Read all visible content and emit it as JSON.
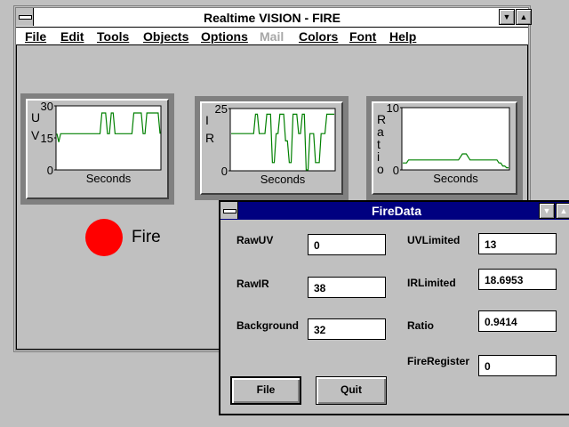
{
  "window": {
    "title": "Realtime VISION - FIRE"
  },
  "menu": [
    "File",
    "Edit",
    "Tools",
    "Objects",
    "Options",
    "Mail",
    "Colors",
    "Font",
    "Help"
  ],
  "menu_disabled": [
    "Mail"
  ],
  "charts": [
    {
      "ylabel": "UV",
      "yticks": [
        "30",
        "15",
        "0"
      ],
      "ymax": 30,
      "xlabel": "Seconds",
      "values": [
        17,
        13,
        17,
        17,
        17,
        17,
        17,
        17,
        17,
        17,
        17,
        17,
        17,
        17,
        17,
        17,
        17,
        17,
        17,
        17,
        17,
        17,
        17,
        17,
        27,
        27,
        27,
        17,
        17,
        27,
        27,
        17,
        17,
        17,
        17,
        17,
        17,
        17,
        17,
        17,
        17,
        27,
        27,
        27,
        27,
        27,
        17,
        17,
        27,
        27,
        27,
        27,
        27,
        27,
        27,
        17
      ]
    },
    {
      "ylabel": "IR",
      "yticks": [
        "25",
        "0"
      ],
      "ymax": 25,
      "xlabel": "Seconds",
      "values": [
        15,
        15,
        15,
        15,
        15,
        15,
        15,
        15,
        15,
        15,
        15,
        15,
        15,
        23,
        23,
        15,
        15,
        15,
        15,
        23,
        23,
        23,
        3,
        3,
        15,
        15,
        23,
        23,
        23,
        12,
        12,
        3,
        3,
        23,
        23,
        23,
        15,
        15,
        23,
        23,
        0,
        0,
        15,
        15,
        15,
        3,
        3,
        3,
        15,
        15,
        15,
        23,
        23,
        23,
        23,
        23
      ]
    },
    {
      "ylabel": "Ratio",
      "yticks": [
        "10",
        "0"
      ],
      "ymax": 10,
      "xlabel": "Seconds",
      "values": [
        1,
        1,
        1,
        1.5,
        1.5,
        1.5,
        1.5,
        1.5,
        1.5,
        1.5,
        1.5,
        1.5,
        1.5,
        1.5,
        1.5,
        1.5,
        1.5,
        1.5,
        1.5,
        1.5,
        1.5,
        1.5,
        1.5,
        1.5,
        1.5,
        1.5,
        1.5,
        1.5,
        1.5,
        1.5,
        2,
        2.5,
        2.5,
        2.5,
        2,
        1.5,
        1.5,
        1.5,
        1.5,
        1.5,
        1.5,
        1.5,
        1.5,
        1.5,
        1.5,
        1.5,
        1.5,
        1.5,
        1.5,
        1.5,
        1,
        1,
        0.5,
        0.5,
        0.2,
        0.2
      ]
    }
  ],
  "fire": {
    "label": "Fire",
    "color": "#ff0000"
  },
  "dialog": {
    "title": "FireData",
    "fields_left": [
      {
        "label": "RawUV",
        "value": "0"
      },
      {
        "label": "RawIR",
        "value": "38"
      },
      {
        "label": "Background",
        "value": "32"
      }
    ],
    "fields_right": [
      {
        "label": "UVLimited",
        "value": "13"
      },
      {
        "label": "IRLimited",
        "value": "18.6953"
      },
      {
        "label": "Ratio",
        "value": "0.9414"
      },
      {
        "label": "FireRegister",
        "value": "0"
      }
    ],
    "buttons": {
      "file": "File",
      "quit": "Quit"
    }
  },
  "colors": {
    "titlebar_active": "#000080",
    "series": "#008000",
    "desktop": "#c0c0c0"
  }
}
